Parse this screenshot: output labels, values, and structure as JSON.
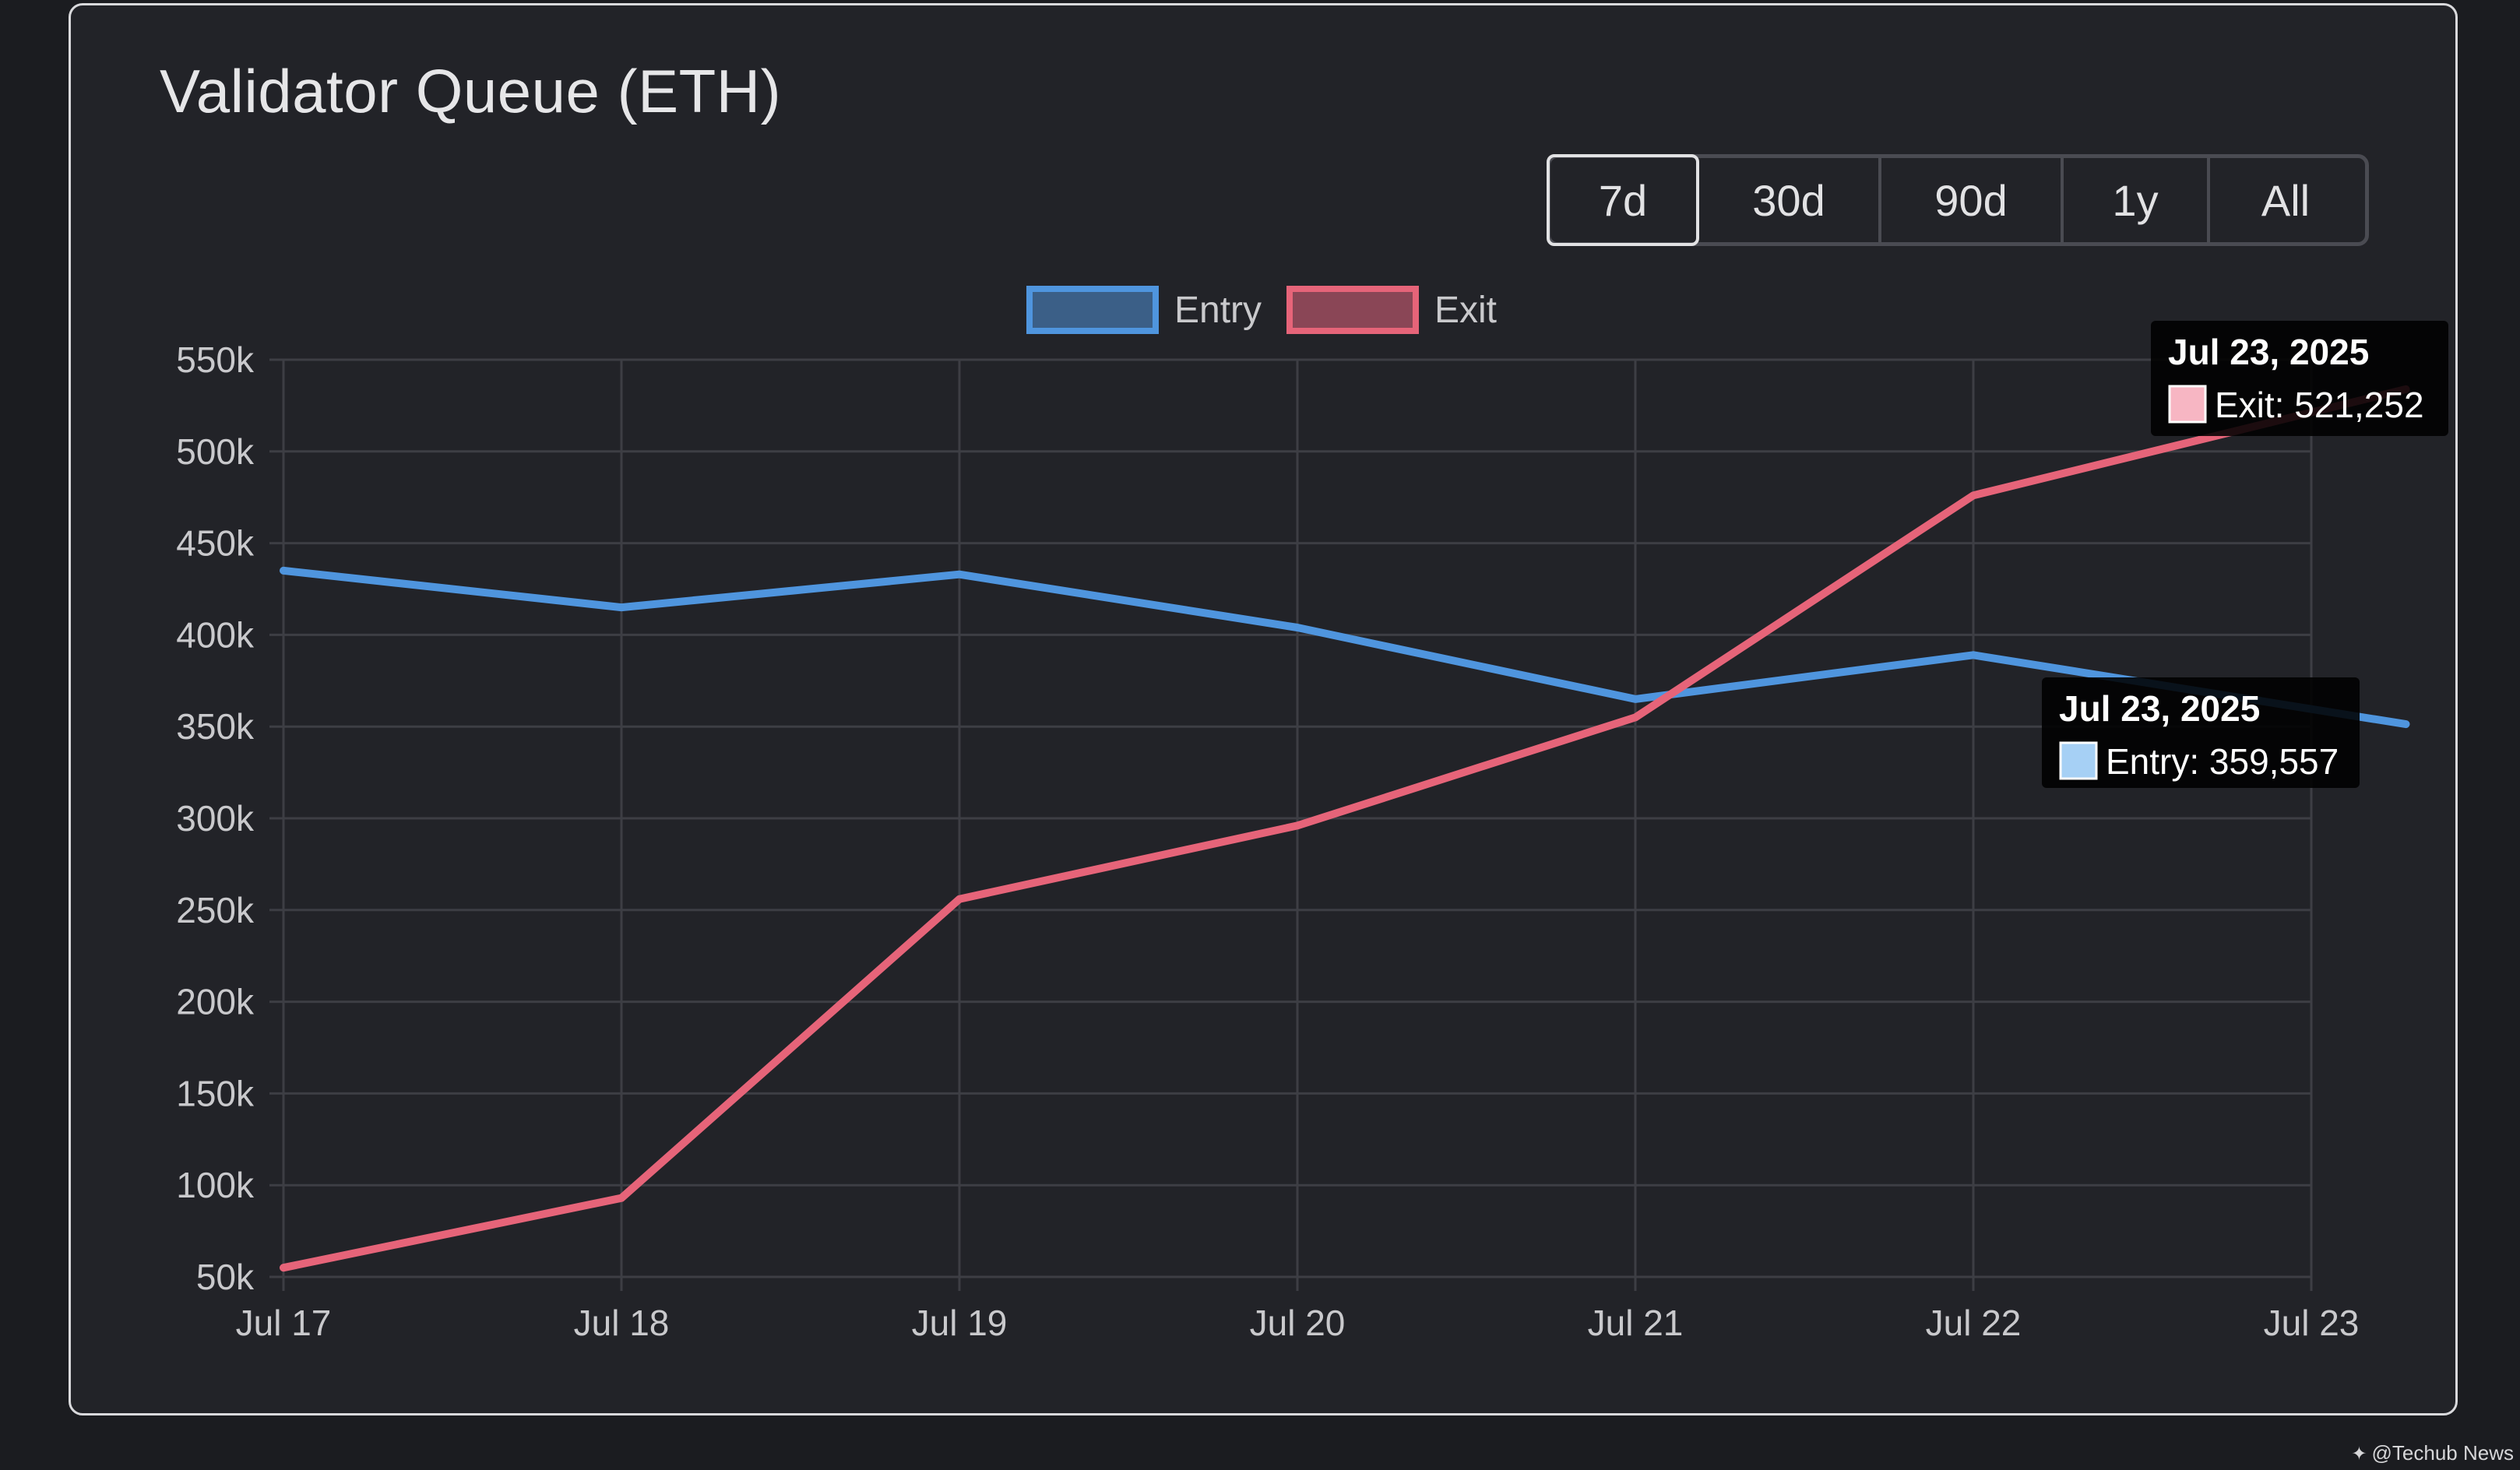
{
  "title": "Validator Queue (ETH)",
  "range_buttons": [
    {
      "label": "7d",
      "active": true
    },
    {
      "label": "30d",
      "active": false
    },
    {
      "label": "90d",
      "active": false
    },
    {
      "label": "1y",
      "active": false
    },
    {
      "label": "All",
      "active": false
    }
  ],
  "colors": {
    "entry": "#4f95de",
    "exit": "#e66479",
    "grid": "#3d3e44",
    "tick_text": "#c9c9cc",
    "tooltip_bg": "#000000"
  },
  "tooltips": [
    {
      "title": "Jul 23, 2025",
      "series": "Exit",
      "text": "Exit: 521,252",
      "swatch": "#f7b6c3"
    },
    {
      "title": "Jul 23, 2025",
      "series": "Entry",
      "text": "Entry: 359,557",
      "swatch": "#a6d0f5"
    }
  ],
  "watermark": "@Techub News",
  "chart_data": {
    "type": "line",
    "categories": [
      "Jul 17",
      "Jul 18",
      "Jul 19",
      "Jul 20",
      "Jul 21",
      "Jul 22",
      "Jul 23"
    ],
    "series": [
      {
        "name": "Entry",
        "values": [
          435000,
          415000,
          433000,
          404000,
          365000,
          389000,
          359557
        ]
      },
      {
        "name": "Exit",
        "values": [
          55000,
          93000,
          256000,
          296000,
          355000,
          476000,
          521252
        ]
      }
    ],
    "yticks": [
      "50k",
      "100k",
      "150k",
      "200k",
      "250k",
      "300k",
      "350k",
      "400k",
      "450k",
      "500k",
      "550k"
    ],
    "ylim": [
      50000,
      550000
    ],
    "legend": "top-center",
    "grid": true
  }
}
